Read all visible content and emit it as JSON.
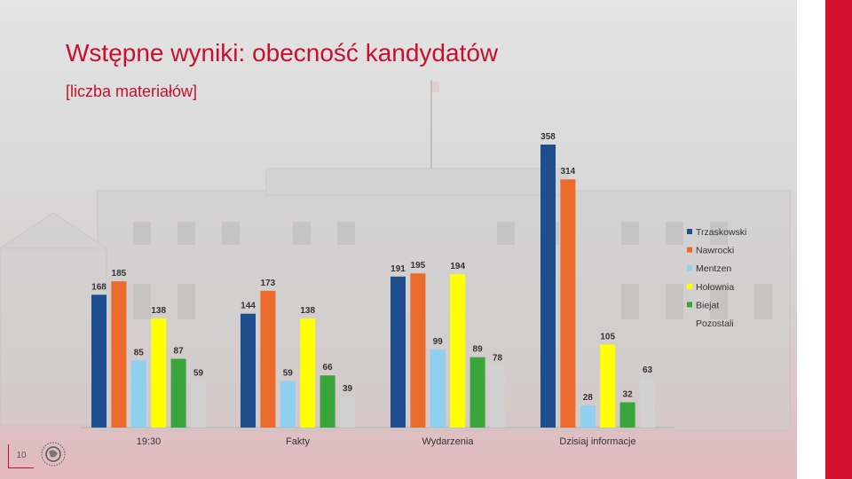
{
  "slide": {
    "title": "Wstępne wyniki: obecność kandydatów",
    "subtitle": "[liczba materiałów]",
    "page_number": "10"
  },
  "colors": {
    "accent_red": "#c8102e"
  },
  "chart_data": {
    "type": "bar",
    "categories": [
      "19:30",
      "Fakty",
      "Wydarzenia",
      "Dzisiaj informacje"
    ],
    "series": [
      {
        "name": "Trzaskowski",
        "color": "#1f4e8f",
        "values": [
          168,
          144,
          191,
          358
        ]
      },
      {
        "name": "Nawrocki",
        "color": "#ea6b2c",
        "values": [
          185,
          173,
          195,
          314
        ]
      },
      {
        "name": "Mentzen",
        "color": "#8fd0f0",
        "values": [
          85,
          59,
          99,
          28
        ]
      },
      {
        "name": "Hołownia",
        "color": "#ffff00",
        "values": [
          138,
          138,
          194,
          105
        ]
      },
      {
        "name": "Biejat",
        "color": "#3aa53a",
        "values": [
          87,
          66,
          89,
          32
        ]
      },
      {
        "name": "Pozostali",
        "color": "#d0d0d0",
        "values": [
          59,
          39,
          78,
          63
        ]
      }
    ],
    "title": "",
    "xlabel": "",
    "ylabel": "",
    "ylim": [
      0,
      358
    ],
    "grid": false,
    "legend_position": "right"
  }
}
